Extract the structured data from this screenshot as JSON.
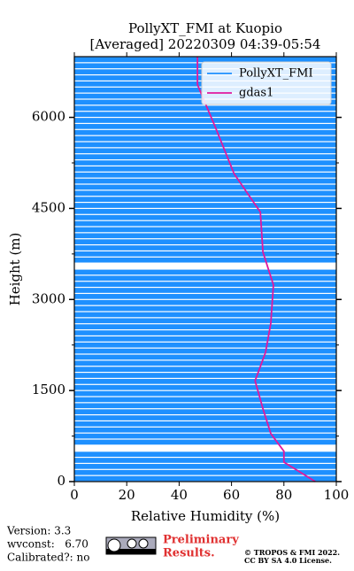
{
  "chart_data": {
    "type": "profile",
    "title": "PollyXT_FMI at Kuopio",
    "subtitle": "[Averaged] 20220309 04:39-05:54",
    "xlabel": "Relative Humidity (%)",
    "ylabel": "Height (m)",
    "xlim": [
      0,
      100
    ],
    "ylim": [
      0,
      7000
    ],
    "xticks": [
      0,
      20,
      40,
      60,
      80,
      100
    ],
    "yticks": [
      0,
      1500,
      3000,
      4500,
      6000
    ],
    "legend": "upper right",
    "series": [
      {
        "name": "PollyXT_FMI",
        "color": "#1e90ff",
        "y": [
          0,
          100,
          200,
          300,
          400,
          500,
          600,
          700,
          800,
          900,
          1000,
          1100,
          1200,
          1300,
          1400,
          1500,
          1600,
          1700,
          1800,
          1900,
          2000,
          2100,
          2200,
          2300,
          2400,
          2500,
          2600,
          2700,
          2800,
          2900,
          3000,
          3100,
          3200,
          3300,
          3400,
          3500,
          3600,
          3700,
          3800,
          3900,
          4000,
          4100,
          4200,
          4300,
          4400,
          4500,
          4600,
          4700,
          4800,
          4900,
          5000,
          5100,
          5200,
          5300,
          5400,
          5500,
          5600,
          5700,
          5800,
          5900,
          6000,
          6100,
          6200,
          6300,
          6400,
          6500,
          6600,
          6700,
          6800,
          6900
        ],
        "values": [
          100,
          100,
          100,
          100,
          100,
          null,
          100,
          100,
          100,
          100,
          100,
          100,
          100,
          100,
          100,
          100,
          100,
          100,
          100,
          100,
          100,
          100,
          100,
          100,
          100,
          100,
          100,
          100,
          100,
          100,
          100,
          100,
          100,
          100,
          100,
          null,
          100,
          100,
          100,
          100,
          100,
          100,
          100,
          100,
          100,
          100,
          100,
          100,
          100,
          100,
          100,
          100,
          100,
          100,
          100,
          100,
          100,
          100,
          100,
          100,
          100,
          100,
          100,
          100,
          100,
          100,
          100,
          100,
          100,
          100
        ]
      },
      {
        "name": "gdas1",
        "color": "#e0189e",
        "y": [
          0,
          320,
          500,
          790,
          1200,
          1660,
          2130,
          2610,
          3240,
          3780,
          4440,
          5070,
          5820,
          6540,
          7000
        ],
        "values": [
          92,
          80,
          80,
          75,
          72,
          69,
          73,
          75,
          76,
          72,
          71,
          61,
          54,
          47,
          47
        ]
      }
    ],
    "footer": {
      "version": "Version: 3.3",
      "wvconst": "wvconst:   6.70",
      "calibrated": "Calibrated?: no",
      "preliminary": "Preliminary",
      "results": "Results.",
      "copyright": "© TROPOS & FMI 2022.",
      "license": "CC BY SA 4.0 License."
    }
  }
}
